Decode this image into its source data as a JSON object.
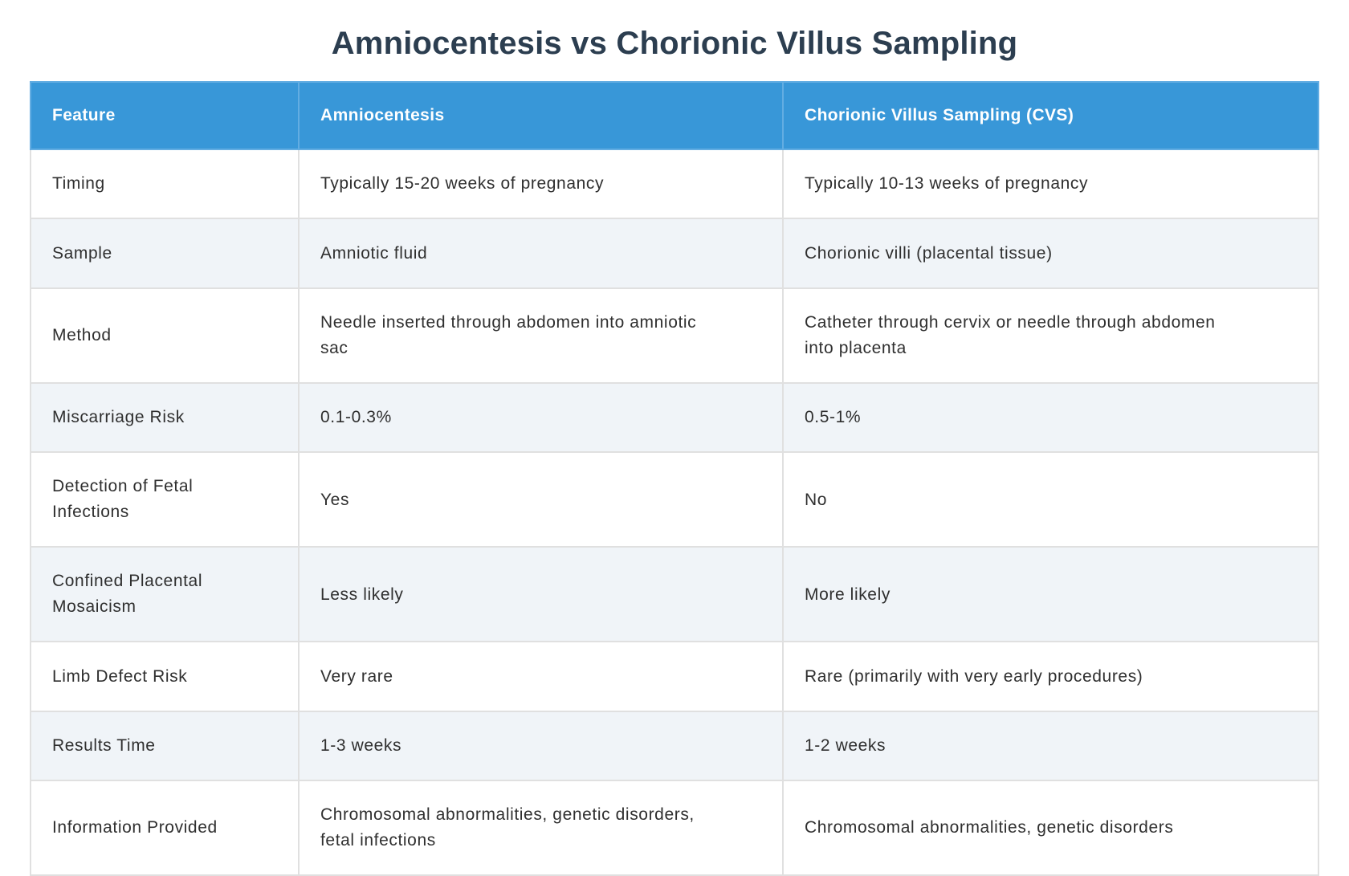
{
  "page_title": "Amniocentesis vs Chorionic Villus Sampling",
  "table": {
    "columns": [
      "Feature",
      "Amniocentesis",
      "Chorionic Villus Sampling (CVS)"
    ],
    "rows": [
      [
        "Timing",
        "Typically 15-20 weeks of pregnancy",
        "Typically 10-13 weeks of pregnancy"
      ],
      [
        "Sample",
        "Amniotic fluid",
        "Chorionic villi (placental tissue)"
      ],
      [
        "Method",
        "Needle inserted through abdomen into amniotic sac",
        "Catheter through cervix or needle through abdomen into placenta"
      ],
      [
        "Miscarriage Risk",
        "0.1-0.3%",
        "0.5-1%"
      ],
      [
        "Detection of Fetal Infections",
        "Yes",
        "No"
      ],
      [
        "Confined Placental Mosaicism",
        "Less likely",
        "More likely"
      ],
      [
        "Limb Defect Risk",
        "Very rare",
        "Rare (primarily with very early procedures)"
      ],
      [
        "Results Time",
        "1-3 weeks",
        "1-2 weeks"
      ],
      [
        "Information Provided",
        "Chromosomal abnormalities, genetic disorders, fetal infections",
        "Chromosomal abnormalities, genetic disorders"
      ]
    ]
  },
  "theme": {
    "header_bg": "#3897d8",
    "header_divider": "#63ade2",
    "header_text": "#ffffff",
    "row_bg": "#ffffff",
    "row_alt_bg": "#f0f4f8",
    "cell_border": "#e0e0e0",
    "title_color": "#2c3e50",
    "text_color": "#2f2f2f"
  }
}
